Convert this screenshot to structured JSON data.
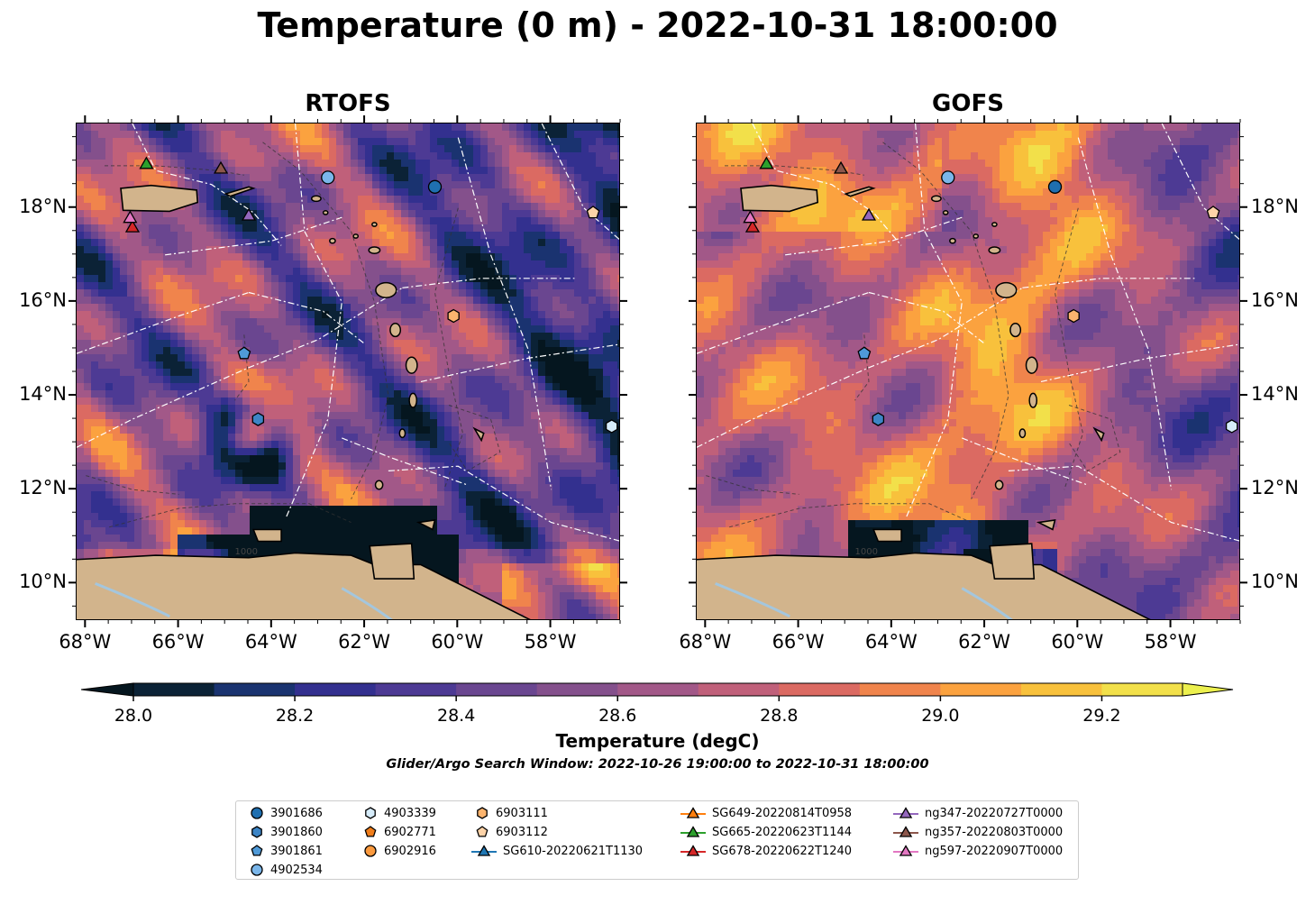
{
  "title": "Temperature (0 m) - 2022-10-31 18:00:00",
  "panels": [
    {
      "title": "RTOFS"
    },
    {
      "title": "GOFS"
    }
  ],
  "axes": {
    "lat_ticks": [
      "18°N",
      "16°N",
      "14°N",
      "12°N",
      "10°N"
    ],
    "lon_ticks": [
      "68°W",
      "66°W",
      "64°W",
      "62°W",
      "60°W",
      "58°W"
    ],
    "lon_range": [
      -68.2,
      -56.5
    ],
    "lat_range": [
      9.2,
      19.8
    ],
    "bathymetry_contour_label": "1000"
  },
  "colorbar": {
    "label": "Temperature (degC)",
    "tick_labels": [
      "28.0",
      "28.2",
      "28.4",
      "28.6",
      "28.8",
      "29.0",
      "29.2"
    ],
    "levels": [
      28.0,
      28.1,
      28.2,
      28.3,
      28.4,
      28.5,
      28.6,
      28.7,
      28.8,
      28.9,
      29.0,
      29.1,
      29.2,
      29.3
    ],
    "colors": [
      "#0b2236",
      "#1a3370",
      "#33308f",
      "#4d3a94",
      "#6a4690",
      "#84508c",
      "#a25888",
      "#c0607a",
      "#db6a62",
      "#f0844c",
      "#fba23f",
      "#f8c13c",
      "#f2e04a"
    ],
    "under_color": "#05161f",
    "over_color": "#ecf04e"
  },
  "search_window": "Glider/Argo Search Window: 2022-10-26 19:00:00 to 2022-10-31 18:00:00",
  "legend": {
    "items": [
      {
        "label": "3901686",
        "marker": "circle",
        "color": "#1f6fb0"
      },
      {
        "label": "3901860",
        "marker": "hexagon",
        "color": "#3d85c6"
      },
      {
        "label": "3901861",
        "marker": "pentagon",
        "color": "#4f9ad8"
      },
      {
        "label": "4902534",
        "marker": "circle",
        "color": "#7ab6ea"
      },
      {
        "label": "4903339",
        "marker": "hexagon",
        "color": "#d6ecfa"
      },
      {
        "label": "6902771",
        "marker": "pentagon",
        "color": "#f07d1a"
      },
      {
        "label": "6902916",
        "marker": "circle",
        "color": "#fb9a3e"
      },
      {
        "label": "6903111",
        "marker": "hexagon",
        "color": "#fcb46e"
      },
      {
        "label": "6903112",
        "marker": "pentagon",
        "color": "#fdd3a8"
      },
      {
        "label": "SG610-20220621T1130",
        "marker": "triangle-line",
        "color": "#1f77b4"
      },
      {
        "label": "SG649-20220814T0958",
        "marker": "triangle-line",
        "color": "#ff7f0e"
      },
      {
        "label": "SG665-20220623T1144",
        "marker": "triangle-line",
        "color": "#2ca02c"
      },
      {
        "label": "SG678-20220622T1240",
        "marker": "triangle-line",
        "color": "#d62728"
      },
      {
        "label": "ng347-20220727T0000",
        "marker": "triangle-line",
        "color": "#9467bd"
      },
      {
        "label": "ng357-20220803T0000",
        "marker": "triangle-line",
        "color": "#8c564b"
      },
      {
        "label": "ng597-20220907T0000",
        "marker": "triangle-line",
        "color": "#e377c2"
      }
    ]
  },
  "observations": [
    {
      "id": "3901686",
      "lon": -60.5,
      "lat": 18.45
    },
    {
      "id": "3901860",
      "lon": -64.3,
      "lat": 13.5
    },
    {
      "id": "3901861",
      "lon": -64.6,
      "lat": 14.9
    },
    {
      "id": "4902534",
      "lon": -62.8,
      "lat": 18.65
    },
    {
      "id": "4903339",
      "lon": -56.7,
      "lat": 13.35
    },
    {
      "id": "6903111",
      "lon": -60.1,
      "lat": 15.7
    },
    {
      "id": "6903112",
      "lon": -57.1,
      "lat": 17.9
    },
    {
      "id": "SG665-20220623T1144",
      "lon": -66.7,
      "lat": 18.95
    },
    {
      "id": "SG678-20220622T1240",
      "lon": -67.0,
      "lat": 17.6
    },
    {
      "id": "ng347-20220727T0000",
      "lon": -64.5,
      "lat": 17.85
    },
    {
      "id": "ng357-20220803T0000",
      "lon": -65.1,
      "lat": 18.85
    },
    {
      "id": "ng597-20220907T0000",
      "lon": -67.05,
      "lat": 17.8
    }
  ],
  "land_color": "#d2b48c",
  "lake_color": "#a4c6dd"
}
